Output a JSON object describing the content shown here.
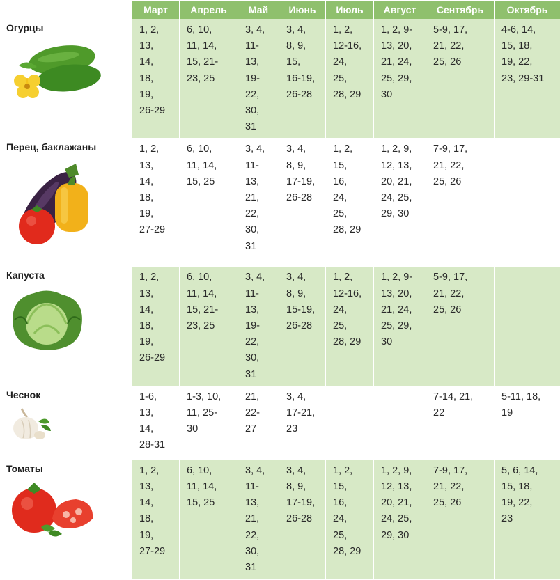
{
  "months": [
    "Март",
    "Апрель",
    "Май",
    "Июнь",
    "Июль",
    "Август",
    "Сентябрь",
    "Октябрь"
  ],
  "rows": [
    {
      "name": "Огурцы",
      "cells": [
        [
          "1, 2,",
          "13,",
          "14,",
          "18,",
          "19,",
          "26-29"
        ],
        [
          "6, 10,",
          "11, 14,",
          "15, 21-",
          "23, 25"
        ],
        [
          "3, 4,",
          "11-",
          "13,",
          "19-",
          "22,",
          "30,",
          "31"
        ],
        [
          "3, 4,",
          "8, 9,",
          "15,",
          "16-19,",
          "26-28"
        ],
        [
          "1, 2,",
          "12-16,",
          "24,",
          "25,",
          "28, 29"
        ],
        [
          "1, 2, 9-",
          "13, 20,",
          "21, 24,",
          "25, 29,",
          "30"
        ],
        [
          "5-9, 17,",
          "21, 22,",
          "25, 26"
        ],
        [
          "4-6, 14,",
          "15, 18,",
          "19, 22,",
          "23, 29-31"
        ]
      ]
    },
    {
      "name": "Перец, баклажаны",
      "cells": [
        [
          "1, 2,",
          "13,",
          "14,",
          "18,",
          "19,",
          "27-29"
        ],
        [
          "6, 10,",
          "11, 14,",
          "15, 25"
        ],
        [
          "3, 4,",
          "11-",
          "13,",
          "21,",
          "22,",
          "30,",
          "31"
        ],
        [
          "3, 4,",
          "8, 9,",
          "17-19,",
          "26-28"
        ],
        [
          "1, 2,",
          "15,",
          "16,",
          "24,",
          "25,",
          "28, 29"
        ],
        [
          "1, 2, 9,",
          "12, 13,",
          "20, 21,",
          "24, 25,",
          "29, 30"
        ],
        [
          "7-9, 17,",
          "21, 22,",
          "25, 26"
        ],
        []
      ]
    },
    {
      "name": "Капуста",
      "cells": [
        [
          "1, 2,",
          "13,",
          "14,",
          "18,",
          "19,",
          "26-29"
        ],
        [
          "6, 10,",
          "11, 14,",
          "15, 21-",
          "23, 25"
        ],
        [
          "3, 4,",
          "11-",
          "13,",
          "19-",
          "22,",
          "30,",
          "31"
        ],
        [
          "3, 4,",
          "8, 9,",
          "15-19,",
          "26-28"
        ],
        [
          "1, 2,",
          "12-16,",
          "24,",
          "25,",
          "28, 29"
        ],
        [
          "1, 2, 9-",
          "13, 20,",
          "21, 24,",
          "25, 29,",
          "30"
        ],
        [
          "5-9, 17,",
          "21, 22,",
          "25, 26"
        ],
        []
      ]
    },
    {
      "name": "Чеснок",
      "cells": [
        [
          "1-6,",
          "13,",
          "14,",
          "28-31"
        ],
        [
          "1-3, 10,",
          "11, 25-",
          "30"
        ],
        [
          "21,",
          "22-",
          "27"
        ],
        [
          "3, 4,",
          "17-21,",
          "23"
        ],
        [],
        [],
        [
          "7-14, 21,",
          "22"
        ],
        [
          "5-11, 18,",
          "19"
        ]
      ]
    },
    {
      "name": "Томаты",
      "cells": [
        [
          "1, 2,",
          "13,",
          "14,",
          "18,",
          "19,",
          "27-29"
        ],
        [
          "6, 10,",
          "11, 14,",
          "15, 25"
        ],
        [
          "3, 4,",
          "11-",
          "13,",
          "21,",
          "22,",
          "30,",
          "31"
        ],
        [
          "3, 4,",
          "8, 9,",
          "17-19,",
          "26-28"
        ],
        [
          "1, 2,",
          "15,",
          "16,",
          "24,",
          "25,",
          "28, 29"
        ],
        [
          "1, 2, 9,",
          "12, 13,",
          "20, 21,",
          "24, 25,",
          "29, 30"
        ],
        [
          "7-9, 17,",
          "21, 22,",
          "25, 26"
        ],
        [
          "5, 6, 14,",
          "15, 18,",
          "19, 22,",
          "23"
        ]
      ]
    }
  ],
  "colors": {
    "header": "#8fc06d",
    "band_green": "#d7e9c6",
    "band_white": "#ffffff"
  },
  "icons": [
    "cucumber-icon",
    "eggplant-pepper-icon",
    "cabbage-icon",
    "garlic-icon",
    "tomato-icon"
  ]
}
